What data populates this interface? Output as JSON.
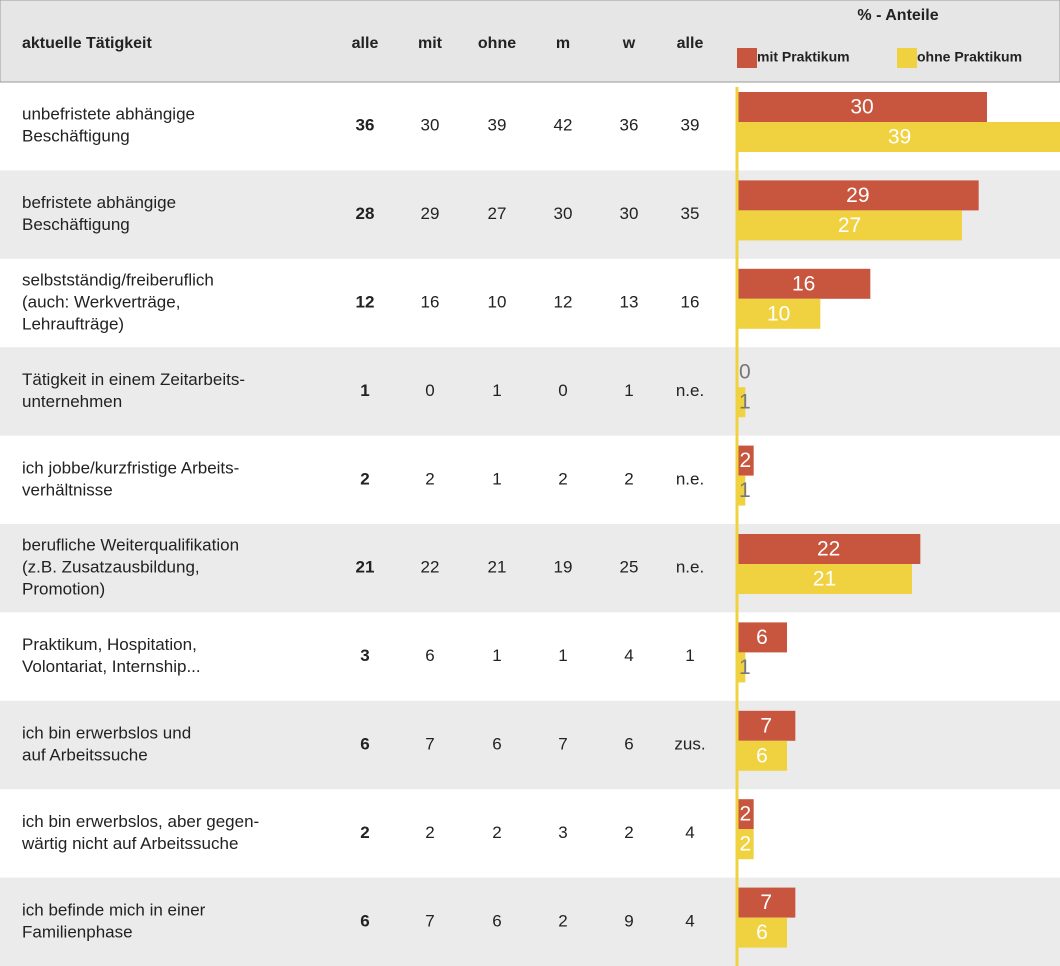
{
  "header": {
    "label": "aktuelle Tätigkeit",
    "alle": "alle",
    "mit": "mit",
    "ohne": "ohne",
    "m": "m",
    "w": "w",
    "alle2": "alle",
    "chart_title": "% - Anteile",
    "legend_mit": "mit Praktikum",
    "legend_ohne": "ohne Praktikum"
  },
  "colors": {
    "mit": "#c8553d",
    "ohne": "#f0d240"
  },
  "rows": [
    {
      "label": [
        "unbefristete abhängige",
        "Beschäftigung"
      ],
      "alle": 36,
      "mit": 30,
      "ohne": 39,
      "m": 42,
      "w": 36,
      "alle2": 39
    },
    {
      "label": [
        "befristete abhängige",
        "Beschäftigung"
      ],
      "alle": 28,
      "mit": 29,
      "ohne": 27,
      "m": 30,
      "w": 30,
      "alle2": 35
    },
    {
      "label": [
        "selbstständig/freiberuflich",
        "(auch: Werkverträge,",
        "Lehraufträge)"
      ],
      "alle": 12,
      "mit": 16,
      "ohne": 10,
      "m": 12,
      "w": 13,
      "alle2": 16
    },
    {
      "label": [
        "Tätigkeit in einem Zeitarbeits-",
        "unternehmen"
      ],
      "alle": 1,
      "mit": 0,
      "ohne": 1,
      "m": 0,
      "w": 1,
      "alle2": "n.e."
    },
    {
      "label": [
        "ich jobbe/kurzfristige Arbeits-",
        "verhältnisse"
      ],
      "alle": 2,
      "mit": 2,
      "ohne": 1,
      "m": 2,
      "w": 2,
      "alle2": "n.e."
    },
    {
      "label": [
        "berufliche Weiterqualifikation",
        "(z.B. Zusatzausbildung,",
        "Promotion)"
      ],
      "alle": 21,
      "mit": 22,
      "ohne": 21,
      "m": 19,
      "w": 25,
      "alle2": "n.e."
    },
    {
      "label": [
        "Praktikum, Hospitation,",
        "Volontariat, Internship..."
      ],
      "alle": 3,
      "mit": 6,
      "ohne": 1,
      "m": 1,
      "w": 4,
      "alle2": 1
    },
    {
      "label": [
        "ich bin erwerbslos und",
        "auf Arbeitssuche"
      ],
      "alle": 6,
      "mit": 7,
      "ohne": 6,
      "m": 7,
      "w": 6,
      "alle2": "zus."
    },
    {
      "label": [
        "ich bin erwerbslos, aber gegen-",
        "wärtig nicht auf Arbeitssuche"
      ],
      "alle": 2,
      "mit": 2,
      "ohne": 2,
      "m": 3,
      "w": 2,
      "alle2": 4
    },
    {
      "label": [
        "ich befinde mich in einer",
        "Familienphase"
      ],
      "alle": 6,
      "mit": 7,
      "ohne": 6,
      "m": 2,
      "w": 9,
      "alle2": 4
    }
  ]
}
